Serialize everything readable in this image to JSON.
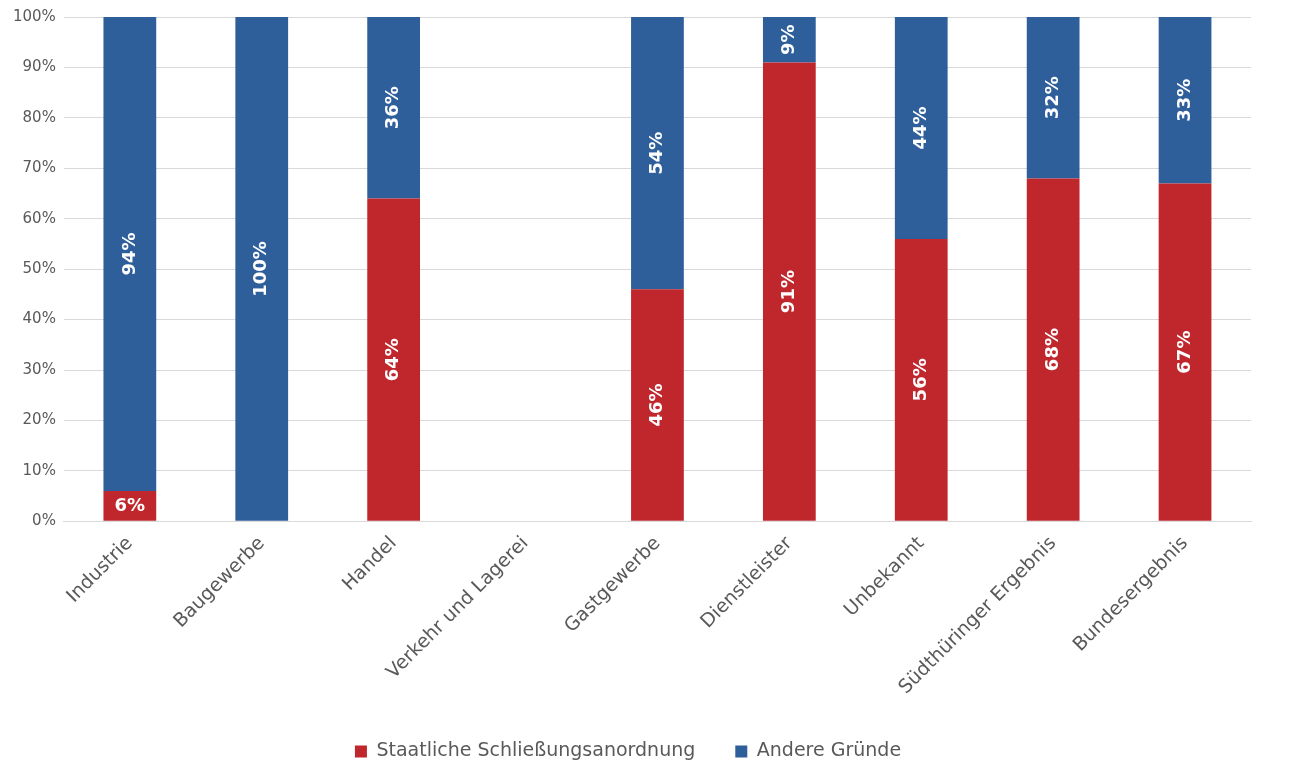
{
  "chart_data": {
    "type": "bar",
    "stacked": true,
    "categories": [
      "Industrie",
      "Baugewerbe",
      "Handel",
      "Verkehr und Lagerei",
      "Gastgewerbe",
      "Dienstleister",
      "Unbekannt",
      "Südthüringer Ergebnis",
      "Bundesergebnis"
    ],
    "series": [
      {
        "name": "Staatliche Schließungsanordnung",
        "color": "#c0272d",
        "values": [
          6,
          0,
          64,
          null,
          46,
          91,
          56,
          68,
          67
        ],
        "value_labels": [
          "6%",
          null,
          "64%",
          null,
          "46%",
          "91%",
          "56%",
          "68%",
          "67%"
        ]
      },
      {
        "name": "Andere Gründe",
        "color": "#2e5f9a",
        "values": [
          94,
          100,
          36,
          null,
          54,
          9,
          44,
          32,
          33
        ],
        "value_labels": [
          "94%",
          "100%",
          "36%",
          null,
          "54%",
          "9%",
          "44%",
          "32%",
          "33%"
        ]
      }
    ],
    "ylim": [
      0,
      100
    ],
    "yticks": [
      {
        "value": 0,
        "label": "0%"
      },
      {
        "value": 10,
        "label": "10%"
      },
      {
        "value": 20,
        "label": "20%"
      },
      {
        "value": 30,
        "label": "30%"
      },
      {
        "value": 40,
        "label": "40%"
      },
      {
        "value": 50,
        "label": "50%"
      },
      {
        "value": 60,
        "label": "60%"
      },
      {
        "value": 70,
        "label": "70%"
      },
      {
        "value": 80,
        "label": "80%"
      },
      {
        "value": 90,
        "label": "90%"
      },
      {
        "value": 100,
        "label": "100%"
      }
    ],
    "grid": "y",
    "legend": "bottom"
  }
}
